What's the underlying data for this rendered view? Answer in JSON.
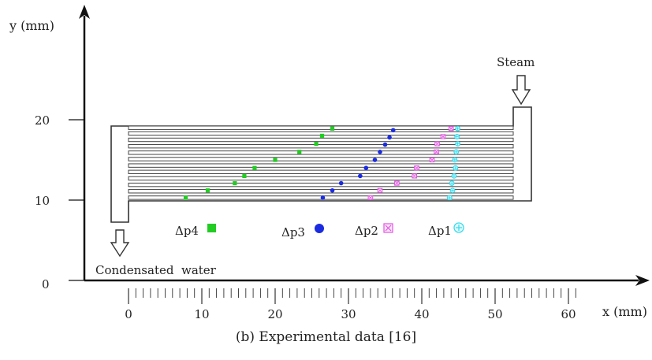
{
  "figure": {
    "caption": "(b) Experimental data [16]",
    "labels": {
      "y_axis": "y (mm)",
      "x_axis": "x (mm)",
      "steam": "Steam",
      "condensate": "Condensated  water"
    },
    "x_ticks": [
      "0",
      "10",
      "20",
      "30",
      "40",
      "50",
      "60"
    ],
    "y_ticks": [
      "0",
      "10",
      "20"
    ]
  },
  "chart_data": {
    "type": "scatter",
    "xlabel": "x (mm)",
    "ylabel": "y (mm)",
    "xlim": [
      -5,
      66
    ],
    "ylim": [
      0,
      30
    ],
    "channel_y": [
      10.3,
      11.1,
      11.9,
      12.7,
      13.5,
      14.3,
      15.1,
      15.9,
      16.7,
      17.5,
      18.3,
      19.0
    ],
    "series": [
      {
        "name": "Δp4",
        "color": "#22cc22",
        "marker": "square",
        "points": [
          [
            7.8,
            10.3
          ],
          [
            10.8,
            11.2
          ],
          [
            14.5,
            12.1
          ],
          [
            15.8,
            13.0
          ],
          [
            17.2,
            14.0
          ],
          [
            20.0,
            15.0
          ],
          [
            23.3,
            16.0
          ],
          [
            25.6,
            17.0
          ],
          [
            26.4,
            18.0
          ],
          [
            27.8,
            18.9
          ]
        ]
      },
      {
        "name": "Δp3",
        "color": "#1a2be0",
        "marker": "circle",
        "points": [
          [
            26.5,
            10.3
          ],
          [
            27.8,
            11.2
          ],
          [
            29.0,
            12.1
          ],
          [
            31.6,
            13.0
          ],
          [
            32.4,
            14.0
          ],
          [
            33.6,
            15.0
          ],
          [
            34.3,
            16.0
          ],
          [
            35.0,
            16.9
          ],
          [
            35.6,
            17.8
          ],
          [
            36.1,
            18.7
          ]
        ]
      },
      {
        "name": "Δp2",
        "color": "#e055e0",
        "marker": "boxed-x",
        "points": [
          [
            33.0,
            10.3
          ],
          [
            34.3,
            11.2
          ],
          [
            36.6,
            12.1
          ],
          [
            39.0,
            13.0
          ],
          [
            39.3,
            14.0
          ],
          [
            41.4,
            15.0
          ],
          [
            42.0,
            16.0
          ],
          [
            42.1,
            17.0
          ],
          [
            42.9,
            17.9
          ],
          [
            44.0,
            18.9
          ]
        ]
      },
      {
        "name": "Δp1",
        "color": "#33ddee",
        "marker": "circle-plus",
        "points": [
          [
            43.8,
            10.3
          ],
          [
            44.2,
            11.2
          ],
          [
            44.1,
            12.1
          ],
          [
            44.4,
            13.0
          ],
          [
            44.6,
            14.0
          ],
          [
            44.5,
            15.0
          ],
          [
            44.7,
            16.0
          ],
          [
            44.9,
            17.0
          ],
          [
            44.8,
            17.9
          ],
          [
            44.9,
            18.9
          ]
        ]
      }
    ]
  }
}
